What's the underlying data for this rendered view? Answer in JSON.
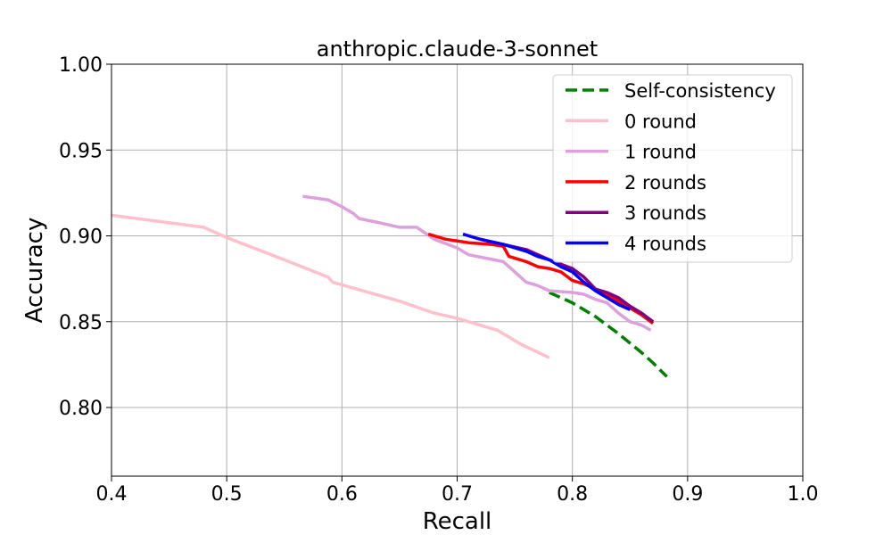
{
  "chart_data": {
    "type": "line",
    "title": "anthropic.claude-3-sonnet",
    "xlabel": "Recall",
    "ylabel": "Accuracy",
    "xlim": [
      0.4,
      1.0
    ],
    "ylim": [
      0.76,
      1.0
    ],
    "xticks": [
      "0.4",
      "0.5",
      "0.6",
      "0.7",
      "0.8",
      "0.9",
      "1.0"
    ],
    "yticks": [
      "0.80",
      "0.85",
      "0.90",
      "0.95",
      "1.00"
    ],
    "grid": true,
    "legend_position": "top-right",
    "series": [
      {
        "name": "Self-consistency",
        "color": "#008000",
        "dash": true,
        "points": [
          [
            0.78,
            0.867
          ],
          [
            0.8,
            0.861
          ],
          [
            0.82,
            0.853
          ],
          [
            0.84,
            0.843
          ],
          [
            0.86,
            0.832
          ],
          [
            0.87,
            0.826
          ],
          [
            0.882,
            0.818
          ]
        ]
      },
      {
        "name": "0 round",
        "color": "#ffc0cb",
        "dash": false,
        "points": [
          [
            0.4,
            0.912
          ],
          [
            0.48,
            0.905
          ],
          [
            0.5,
            0.899
          ],
          [
            0.55,
            0.886
          ],
          [
            0.588,
            0.876
          ],
          [
            0.592,
            0.873
          ],
          [
            0.65,
            0.862
          ],
          [
            0.68,
            0.855
          ],
          [
            0.7,
            0.852
          ],
          [
            0.735,
            0.845
          ],
          [
            0.755,
            0.837
          ],
          [
            0.78,
            0.829
          ]
        ]
      },
      {
        "name": "1 round",
        "color": "#dda0dd",
        "dash": false,
        "points": [
          [
            0.566,
            0.923
          ],
          [
            0.588,
            0.921
          ],
          [
            0.6,
            0.917
          ],
          [
            0.61,
            0.913
          ],
          [
            0.615,
            0.91
          ],
          [
            0.63,
            0.908
          ],
          [
            0.65,
            0.905
          ],
          [
            0.665,
            0.905
          ],
          [
            0.68,
            0.898
          ],
          [
            0.7,
            0.893
          ],
          [
            0.71,
            0.889
          ],
          [
            0.74,
            0.885
          ],
          [
            0.75,
            0.879
          ],
          [
            0.76,
            0.873
          ],
          [
            0.77,
            0.871
          ],
          [
            0.78,
            0.868
          ],
          [
            0.8,
            0.867
          ],
          [
            0.81,
            0.866
          ],
          [
            0.82,
            0.863
          ],
          [
            0.83,
            0.861
          ],
          [
            0.84,
            0.855
          ],
          [
            0.85,
            0.85
          ],
          [
            0.86,
            0.848
          ],
          [
            0.868,
            0.845
          ]
        ]
      },
      {
        "name": "2 rounds",
        "color": "#ff0000",
        "dash": false,
        "points": [
          [
            0.675,
            0.901
          ],
          [
            0.69,
            0.898
          ],
          [
            0.71,
            0.896
          ],
          [
            0.73,
            0.895
          ],
          [
            0.74,
            0.894
          ],
          [
            0.745,
            0.888
          ],
          [
            0.76,
            0.885
          ],
          [
            0.77,
            0.882
          ],
          [
            0.78,
            0.881
          ],
          [
            0.79,
            0.879
          ],
          [
            0.8,
            0.874
          ],
          [
            0.81,
            0.872
          ],
          [
            0.82,
            0.869
          ],
          [
            0.83,
            0.866
          ],
          [
            0.84,
            0.862
          ],
          [
            0.85,
            0.858
          ],
          [
            0.86,
            0.854
          ],
          [
            0.87,
            0.849
          ]
        ]
      },
      {
        "name": "3 rounds",
        "color": "#800080",
        "dash": false,
        "points": [
          [
            0.72,
            0.898
          ],
          [
            0.74,
            0.895
          ],
          [
            0.76,
            0.892
          ],
          [
            0.78,
            0.886
          ],
          [
            0.8,
            0.881
          ],
          [
            0.81,
            0.876
          ],
          [
            0.82,
            0.869
          ],
          [
            0.83,
            0.867
          ],
          [
            0.84,
            0.864
          ],
          [
            0.85,
            0.859
          ],
          [
            0.86,
            0.855
          ],
          [
            0.87,
            0.85
          ]
        ]
      },
      {
        "name": "4 rounds",
        "color": "#0000ff",
        "dash": false,
        "points": [
          [
            0.705,
            0.901
          ],
          [
            0.72,
            0.898
          ],
          [
            0.74,
            0.895
          ],
          [
            0.76,
            0.891
          ],
          [
            0.77,
            0.888
          ],
          [
            0.78,
            0.886
          ],
          [
            0.79,
            0.882
          ],
          [
            0.8,
            0.879
          ],
          [
            0.81,
            0.873
          ],
          [
            0.82,
            0.868
          ],
          [
            0.83,
            0.864
          ],
          [
            0.84,
            0.86
          ],
          [
            0.85,
            0.857
          ]
        ]
      }
    ]
  }
}
